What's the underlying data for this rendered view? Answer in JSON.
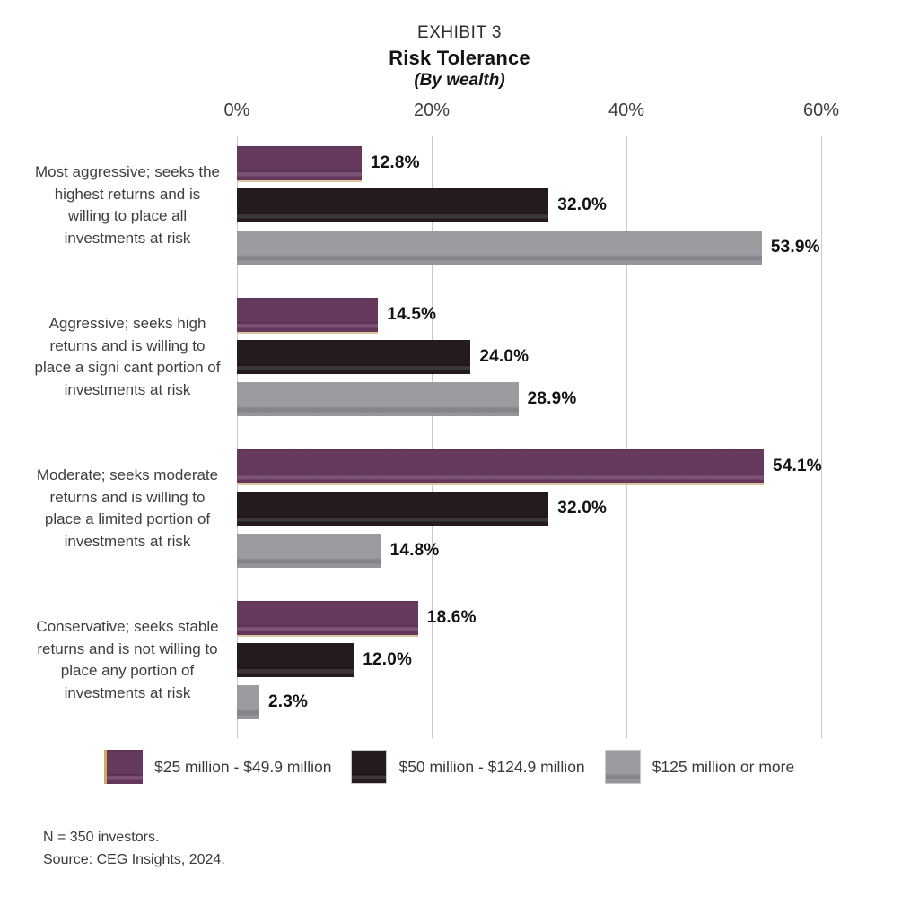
{
  "title": {
    "exhibit": "EXHIBIT 3",
    "main": "Risk Tolerance",
    "sub": "(By wealth)"
  },
  "chart_data": {
    "type": "bar",
    "orientation": "horizontal",
    "title": "Risk Tolerance (By wealth)",
    "categories": [
      "Most aggressive; seeks the highest returns and is willing to place all investments at risk",
      "Aggressive; seeks high returns and is willing to place a signi cant portion of investments at risk",
      "Moderate; seeks moderate returns and is willing to place a limited portion of investments at risk",
      "Conservative; seeks stable returns and is not willing to place any portion of investments at risk"
    ],
    "series": [
      {
        "name": "$25 million - $49.9 million",
        "color": "#643659",
        "values": [
          12.8,
          14.5,
          54.1,
          18.6
        ]
      },
      {
        "name": "$50 million - $124.9 million",
        "color": "#241b1d",
        "values": [
          32.0,
          24.0,
          32.0,
          12.0
        ]
      },
      {
        "name": "$125 million or more",
        "color": "#9c9ba0",
        "values": [
          53.9,
          28.9,
          14.8,
          2.3
        ]
      }
    ],
    "value_label_format": "percent_one_decimal",
    "xlim": [
      0,
      60
    ],
    "xticks": [
      "0%",
      "20%",
      "40%",
      "60%"
    ],
    "grid": true,
    "legend_position": "bottom"
  },
  "legend": {
    "items": [
      {
        "label": "$25 million - $49.9 million",
        "color": "#643659"
      },
      {
        "label": "$50 million - $124.9 million",
        "color": "#241b1d"
      },
      {
        "label": "$125 million or more",
        "color": "#9c9ba0"
      }
    ]
  },
  "footnotes": [
    "N = 350 investors.",
    "Source: CEG Insights, 2024."
  ]
}
